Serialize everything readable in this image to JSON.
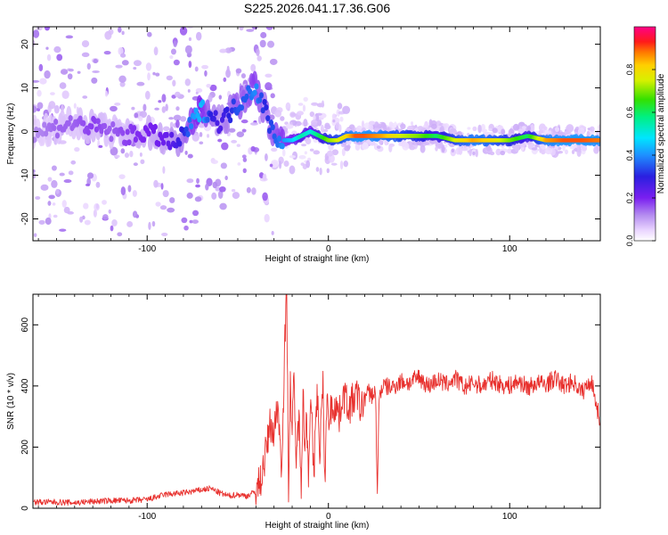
{
  "figure": {
    "title": "S225.2026.041.17.36.G06"
  },
  "colors": {
    "snr_line": "#e8312e",
    "axis": "#000000",
    "background": "#ffffff"
  },
  "chart_data": [
    {
      "type": "heatmap",
      "xlabel": "Height of straight line (km)",
      "ylabel": "Frequency (Hz)",
      "xlim": [
        -163,
        150
      ],
      "ylim": [
        -25,
        24
      ],
      "xticks": [
        -100,
        0,
        100
      ],
      "yticks": [
        -20,
        -10,
        0,
        10,
        20
      ],
      "grid": false,
      "colorbar": {
        "label": "Normalized spectral amplitude",
        "range": [
          0,
          1
        ],
        "ticks": [
          "0.0",
          "0.2",
          "0.4",
          "0.6",
          "0.8"
        ],
        "colormap": "rainbow (white-violet-blue-cyan-green-yellow-red-pink)"
      },
      "ridge": {
        "x": [
          -160,
          -150,
          -140,
          -130,
          -120,
          -110,
          -100,
          -90,
          -85,
          -80,
          -75,
          -70,
          -65,
          -60,
          -55,
          -50,
          -45,
          -40,
          -35,
          -30,
          -25,
          -20,
          -15,
          -10,
          -5,
          0,
          5,
          10,
          15,
          20,
          30,
          40,
          50,
          60,
          70,
          80,
          90,
          100,
          110,
          120,
          130,
          140,
          150
        ],
        "y": [
          0,
          1,
          2,
          1,
          0,
          -1,
          0,
          -2,
          -3,
          -1,
          2,
          5,
          4,
          2,
          4,
          6,
          9,
          10,
          5,
          -1,
          -2,
          -2,
          -1,
          0,
          -1,
          -2,
          -2,
          -1,
          -1,
          -1,
          -1,
          -1,
          -1,
          -1,
          -2,
          -2,
          -2,
          -2,
          -1,
          -2,
          -2,
          -2,
          -2
        ],
        "amplitude": [
          0.12,
          0.15,
          0.15,
          0.18,
          0.15,
          0.18,
          0.2,
          0.22,
          0.25,
          0.3,
          0.4,
          0.45,
          0.3,
          0.25,
          0.3,
          0.35,
          0.35,
          0.4,
          0.3,
          0.35,
          0.4,
          0.45,
          0.55,
          0.5,
          0.6,
          0.7,
          0.75,
          0.8,
          0.9,
          0.9,
          0.85,
          0.75,
          0.7,
          0.6,
          0.75,
          0.85,
          0.8,
          0.7,
          0.6,
          0.85,
          0.9,
          0.9,
          0.88
        ]
      }
    },
    {
      "type": "line",
      "xlabel": "Height of straight line (km)",
      "ylabel": "SNR (10 * v/v)",
      "xlim": [
        -163,
        150
      ],
      "ylim": [
        0,
        700
      ],
      "xticks": [
        -100,
        0,
        100
      ],
      "yticks": [
        0,
        200,
        400,
        600
      ],
      "grid": false,
      "series": [
        {
          "x": [
            -163,
            -150,
            -140,
            -130,
            -120,
            -110,
            -100,
            -90,
            -80,
            -75,
            -70,
            -65,
            -60,
            -55,
            -50,
            -45,
            -40,
            -37,
            -34,
            -32,
            -30,
            -28,
            -26,
            -25,
            -24,
            -23,
            -22,
            -21,
            -20,
            -19,
            -18,
            -17,
            -16,
            -15,
            -14,
            -13,
            -12,
            -11,
            -10,
            -9,
            -8,
            -7,
            -6,
            -5,
            -4,
            -3,
            -2,
            -1,
            0,
            2,
            4,
            6,
            8,
            10,
            12,
            14,
            16,
            18,
            20,
            22,
            24,
            26,
            27,
            28,
            30,
            35,
            40,
            45,
            50,
            55,
            60,
            65,
            70,
            75,
            80,
            85,
            90,
            95,
            100,
            105,
            110,
            115,
            120,
            125,
            130,
            135,
            140,
            145,
            150
          ],
          "y": [
            20,
            20,
            18,
            22,
            25,
            25,
            28,
            45,
            50,
            55,
            60,
            65,
            50,
            40,
            45,
            40,
            55,
            100,
            200,
            280,
            240,
            350,
            150,
            300,
            550,
            700,
            80,
            400,
            250,
            420,
            180,
            220,
            300,
            90,
            380,
            200,
            300,
            120,
            350,
            260,
            80,
            320,
            380,
            150,
            300,
            400,
            60,
            350,
            300,
            330,
            340,
            300,
            380,
            350,
            330,
            360,
            370,
            320,
            360,
            380,
            370,
            380,
            30,
            370,
            400,
            395,
            415,
            410,
            430,
            400,
            420,
            405,
            425,
            395,
            410,
            400,
            420,
            405,
            400,
            415,
            395,
            410,
            405,
            425,
            400,
            415,
            380,
            420,
            280
          ]
        }
      ]
    }
  ]
}
